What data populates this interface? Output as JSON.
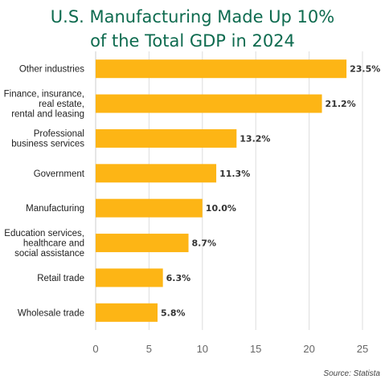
{
  "title": {
    "line1": "U.S. Manufacturing Made Up 10%",
    "line2": "of the Total GDP in 2024"
  },
  "source": "Source: Statista",
  "colors": {
    "bar": "#FDB515",
    "title": "#0e6b4f",
    "grid": "#dddddd"
  },
  "chart_data": {
    "type": "bar",
    "orientation": "horizontal",
    "categories": [
      [
        "Other industries"
      ],
      [
        "Finance, insurance,",
        "real estate,",
        "rental and leasing"
      ],
      [
        "Professional",
        "business services"
      ],
      [
        "Government"
      ],
      [
        "Manufacturing"
      ],
      [
        "Education services,",
        "healthcare and",
        "social assistance"
      ],
      [
        "Retail trade"
      ],
      [
        "Wholesale trade"
      ]
    ],
    "values": [
      23.5,
      21.2,
      13.2,
      11.3,
      10.0,
      8.7,
      6.3,
      5.8
    ],
    "value_labels": [
      "23.5%",
      "21.2%",
      "13.2%",
      "11.3%",
      "10.0%",
      "8.7%",
      "6.3%",
      "5.8%"
    ],
    "xlim": [
      0,
      25
    ],
    "xticks": [
      0,
      5,
      10,
      15,
      20,
      25
    ],
    "grid": "vertical"
  }
}
